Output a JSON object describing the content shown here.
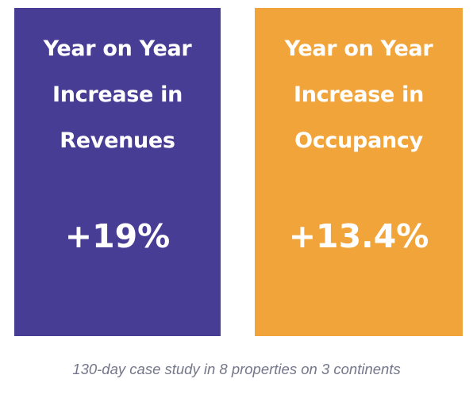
{
  "cards": [
    {
      "heading_lines": [
        "Year on Year",
        "Increase in",
        "Revenues"
      ],
      "value": "+19%",
      "color": "#473d95"
    },
    {
      "heading_lines": [
        "Year on Year",
        "Increase in",
        "Occupancy"
      ],
      "value": "+13.4%",
      "color": "#f1a43a"
    }
  ],
  "caption": "130-day case study in 8 properties on 3 continents"
}
